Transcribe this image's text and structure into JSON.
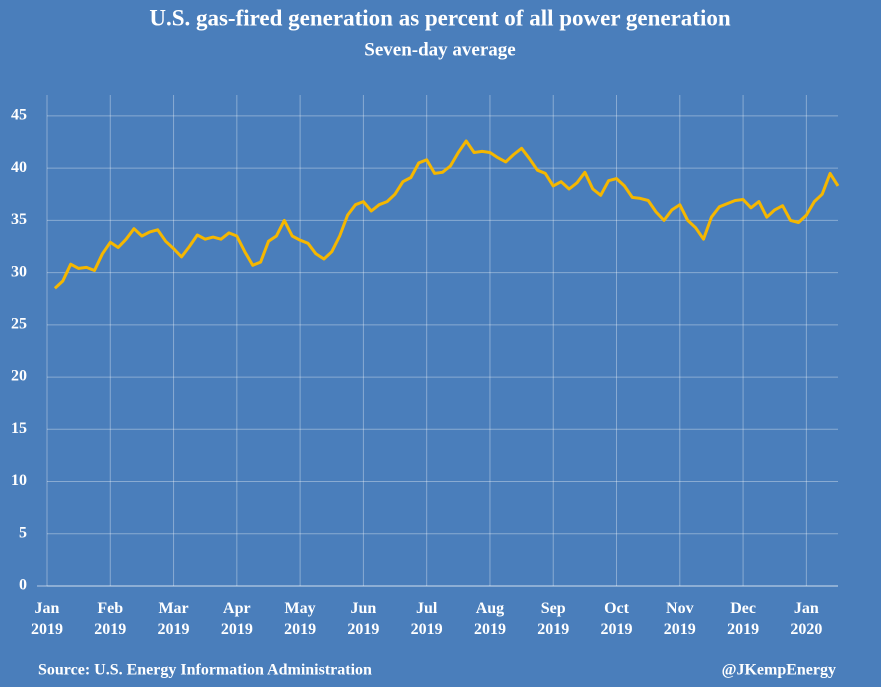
{
  "chart_data": {
    "type": "line",
    "title": "U.S. gas-fired generation as percent of  all power generation",
    "subtitle": "Seven-day average",
    "source": "Source: U.S. Energy Information Administration",
    "credit": "@JKempEnergy",
    "categories": [
      "Jan 2019",
      null,
      null,
      null,
      null,
      null,
      null,
      null,
      "Feb 2019",
      null,
      null,
      null,
      null,
      null,
      null,
      null,
      "Mar 2019",
      null,
      null,
      null,
      null,
      null,
      null,
      null,
      "Apr 2019",
      null,
      null,
      null,
      null,
      null,
      null,
      null,
      "May 2019",
      null,
      null,
      null,
      null,
      null,
      null,
      null,
      "Jun 2019",
      null,
      null,
      null,
      null,
      null,
      null,
      null,
      "Jul 2019",
      null,
      null,
      null,
      null,
      null,
      null,
      null,
      "Aug 2019",
      null,
      null,
      null,
      null,
      null,
      null,
      null,
      "Sep 2019",
      null,
      null,
      null,
      null,
      null,
      null,
      null,
      "Oct 2019",
      null,
      null,
      null,
      null,
      null,
      null,
      null,
      "Nov 2019",
      null,
      null,
      null,
      null,
      null,
      null,
      null,
      "Dec 2019",
      null,
      null,
      null,
      null,
      null,
      null,
      null,
      "Jan 2020",
      null,
      null,
      null,
      null
    ],
    "series": [
      {
        "color": "#f5b700",
        "values": [
          null,
          28.5,
          29.2,
          30.8,
          30.4,
          30.5,
          30.2,
          31.8,
          32.9,
          32.4,
          33.2,
          34.2,
          33.5,
          33.9,
          34.1,
          33.0,
          32.3,
          31.5,
          32.5,
          33.6,
          33.2,
          33.4,
          33.2,
          33.8,
          33.5,
          32.0,
          30.7,
          31.0,
          33.0,
          33.5,
          35.0,
          33.5,
          33.1,
          32.8,
          31.8,
          31.3,
          32.0,
          33.5,
          35.5,
          36.5,
          36.8,
          35.9,
          36.5,
          36.8,
          37.5,
          38.7,
          39.1,
          40.5,
          40.8,
          39.5,
          39.6,
          40.2,
          41.5,
          42.6,
          41.5,
          41.6,
          41.5,
          41.0,
          40.6,
          41.3,
          41.9,
          40.9,
          39.8,
          39.5,
          38.3,
          38.7,
          38.0,
          38.6,
          39.6,
          38.0,
          37.4,
          38.8,
          39.0,
          38.3,
          37.2,
          37.1,
          36.9,
          35.8,
          35.0,
          36.0,
          36.5,
          35.0,
          34.3,
          33.2,
          35.3,
          36.3,
          36.6,
          36.9,
          37.0,
          36.2,
          36.8,
          35.3,
          36.0,
          36.4,
          35.0,
          34.8,
          35.5,
          36.8,
          37.5,
          39.5,
          38.3
        ]
      }
    ],
    "ylim": [
      0,
      47
    ],
    "yticks": [
      0,
      5,
      10,
      15,
      20,
      25,
      30,
      35,
      40,
      45
    ],
    "grid": true
  }
}
